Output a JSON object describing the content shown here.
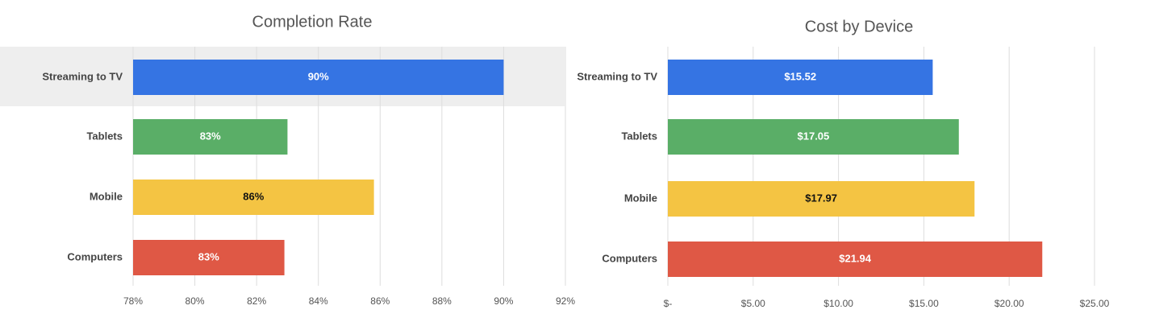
{
  "chart_data": [
    {
      "type": "bar",
      "orientation": "horizontal",
      "title": "Completion Rate",
      "categories": [
        "Streaming to TV",
        "Tablets",
        "Mobile",
        "Computers"
      ],
      "values": [
        90,
        83,
        85.8,
        82.9
      ],
      "value_labels": [
        "90%",
        "83%",
        "86%",
        "83%"
      ],
      "colors": [
        "#3574e3",
        "#5aae67",
        "#f4c443",
        "#df5845"
      ],
      "value_label_colors": [
        "#ffffff",
        "#ffffff",
        "#111111",
        "#ffffff"
      ],
      "xlim": [
        78,
        92
      ],
      "xticks": [
        {
          "value": 78,
          "label": "78%"
        },
        {
          "value": 80,
          "label": "80%"
        },
        {
          "value": 82,
          "label": "82%"
        },
        {
          "value": 84,
          "label": "84%"
        },
        {
          "value": 86,
          "label": "86%"
        },
        {
          "value": 88,
          "label": "88%"
        },
        {
          "value": 90,
          "label": "90%"
        },
        {
          "value": 92,
          "label": "92%"
        }
      ],
      "grid": true
    },
    {
      "type": "bar",
      "orientation": "horizontal",
      "title": "Cost by Device",
      "categories": [
        "Streaming to TV",
        "Tablets",
        "Mobile",
        "Computers"
      ],
      "values": [
        15.52,
        17.05,
        17.97,
        21.94
      ],
      "value_labels": [
        "$15.52",
        "$17.05",
        "$17.97",
        "$21.94"
      ],
      "colors": [
        "#3574e3",
        "#5aae67",
        "#f4c443",
        "#df5845"
      ],
      "value_label_colors": [
        "#ffffff",
        "#ffffff",
        "#111111",
        "#ffffff"
      ],
      "xlim": [
        0,
        25
      ],
      "xticks": [
        {
          "value": 0,
          "label": "$-"
        },
        {
          "value": 5,
          "label": "$5.00"
        },
        {
          "value": 10,
          "label": "$10.00"
        },
        {
          "value": 15,
          "label": "$15.00"
        },
        {
          "value": 20,
          "label": "$20.00"
        },
        {
          "value": 25,
          "label": "$25.00"
        }
      ],
      "grid": true
    }
  ]
}
